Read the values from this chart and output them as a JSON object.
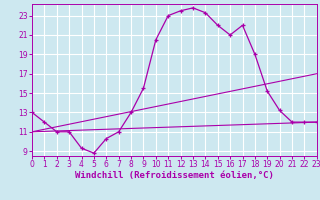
{
  "xlabel": "Windchill (Refroidissement éolien,°C)",
  "bg_color": "#cde8f0",
  "line_color": "#aa00aa",
  "grid_color": "#ffffff",
  "xmin": 0,
  "xmax": 23,
  "ymin": 8.5,
  "ymax": 24.2,
  "yticks": [
    9,
    11,
    13,
    15,
    17,
    19,
    21,
    23
  ],
  "xticks": [
    0,
    1,
    2,
    3,
    4,
    5,
    6,
    7,
    8,
    9,
    10,
    11,
    12,
    13,
    14,
    15,
    16,
    17,
    18,
    19,
    20,
    21,
    22,
    23
  ],
  "curve1_x": [
    0,
    1,
    2,
    3,
    4,
    5,
    6,
    7,
    8,
    9,
    10,
    11,
    12,
    13,
    14,
    15,
    16,
    17,
    18,
    19,
    20,
    21,
    22,
    23
  ],
  "curve1_y": [
    13,
    12,
    11,
    11,
    9.3,
    8.8,
    10.3,
    11,
    13,
    15.5,
    20.5,
    23,
    23.5,
    23.8,
    23.3,
    22,
    21,
    22,
    19,
    15.2,
    13.2,
    12,
    12,
    12
  ],
  "line1_x": [
    0,
    23
  ],
  "line1_y": [
    11,
    12
  ],
  "line2_x": [
    0,
    23
  ],
  "line2_y": [
    11,
    17
  ],
  "tick_fontsize": 5.5,
  "xlabel_fontsize": 6.5
}
